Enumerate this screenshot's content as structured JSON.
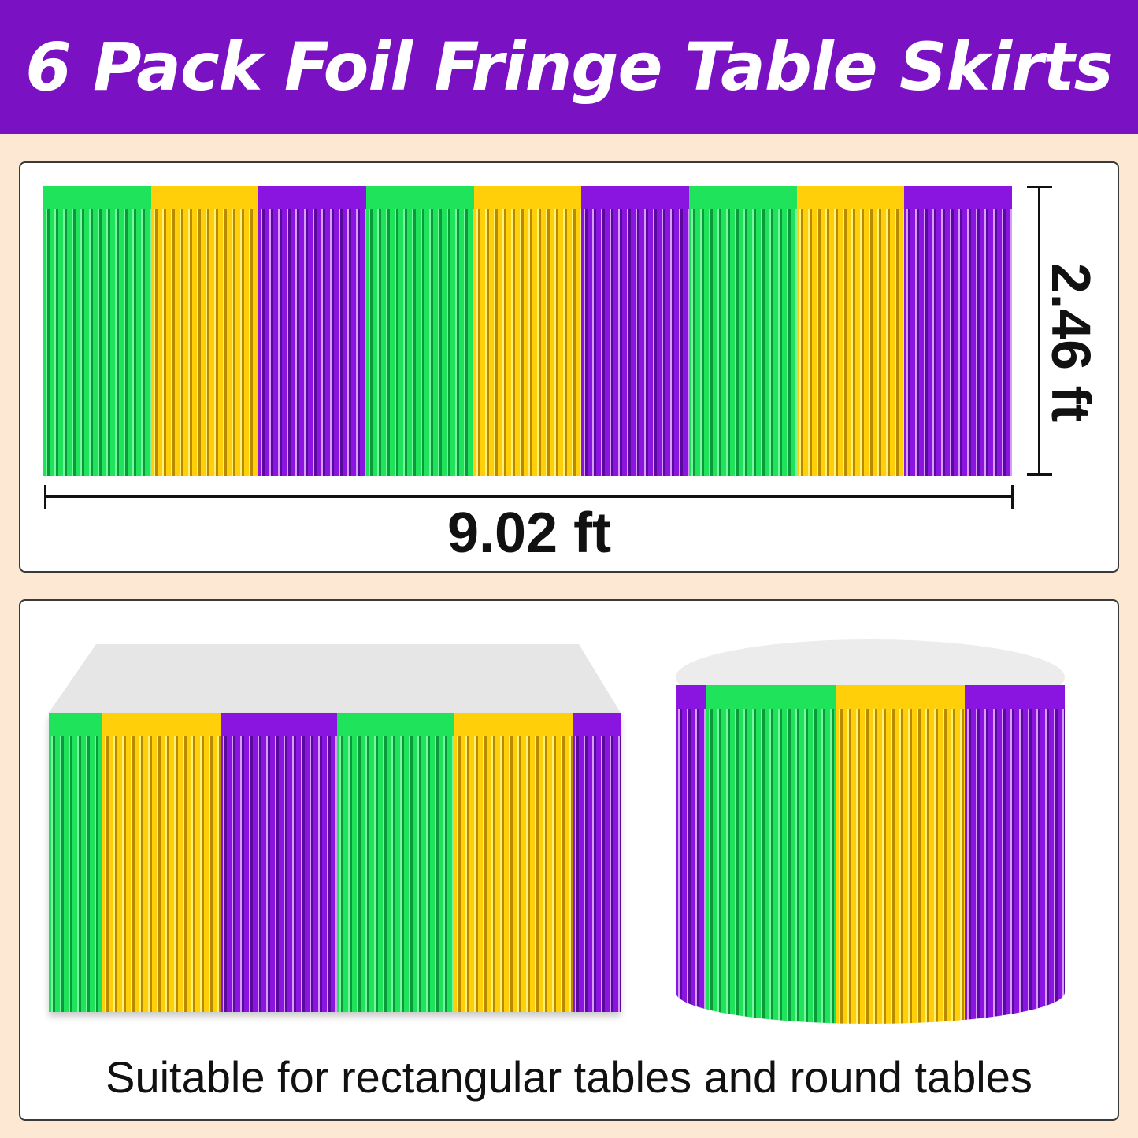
{
  "title": "6 Pack Foil Fringe Table Skirts",
  "colors": {
    "green": "#1fe35a",
    "gold": "#ffcf0a",
    "purple": "#8a14e0",
    "banner": "#7a12c4"
  },
  "dimensions": {
    "height_label": "2.46 ft",
    "width_label": "9.02 ft"
  },
  "flat_skirt_colors": [
    "green",
    "gold",
    "purple",
    "green",
    "gold",
    "purple",
    "green",
    "gold",
    "purple"
  ],
  "rect_table_colors": [
    "green",
    "gold",
    "purple",
    "green",
    "gold",
    "purple"
  ],
  "round_table_colors": [
    "purple",
    "green",
    "gold",
    "purple"
  ],
  "caption": "Suitable for rectangular tables and round tables"
}
